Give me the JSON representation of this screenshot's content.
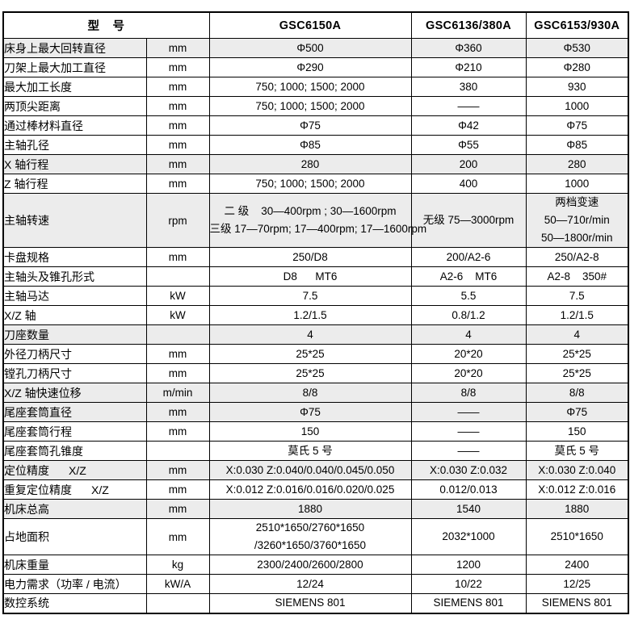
{
  "table": {
    "colors": {
      "shade": "#ececec",
      "border": "#000000",
      "text": "#000000"
    },
    "header": {
      "model_label": "型　号",
      "models": [
        "GSC6150A",
        "GSC6136/380A",
        "GSC6153/930A"
      ]
    },
    "rows": [
      {
        "label": "床身上最大回转直径",
        "unit": "mm",
        "values": [
          "Φ500",
          "Φ360",
          "Φ530"
        ],
        "shaded": true
      },
      {
        "label": "刀架上最大加工直径",
        "unit": "mm",
        "values": [
          "Φ290",
          "Φ210",
          "Φ280"
        ],
        "shaded": false
      },
      {
        "label": "最大加工长度",
        "unit": "mm",
        "values": [
          "750; 1000; 1500; 2000",
          "380",
          "930"
        ],
        "shaded": false
      },
      {
        "label": "两顶尖距离",
        "unit": "mm",
        "values": [
          "750; 1000; 1500; 2000",
          "——",
          "1000"
        ],
        "shaded": false
      },
      {
        "label": "通过棒材料直径",
        "unit": "mm",
        "values": [
          "Φ75",
          "Φ42",
          "Φ75"
        ],
        "shaded": false
      },
      {
        "label": "主轴孔径",
        "unit": "mm",
        "values": [
          "Φ85",
          "Φ55",
          "Φ85"
        ],
        "shaded": false
      },
      {
        "label": "X 轴行程",
        "unit": "mm",
        "values": [
          "280",
          "200",
          "280"
        ],
        "shaded": true
      },
      {
        "label": "Z 轴行程",
        "unit": "mm",
        "values": [
          "750; 1000; 1500; 2000",
          "400",
          "1000"
        ],
        "shaded": false
      },
      {
        "label": "主轴转速",
        "unit": "rpm",
        "values": [
          [
            "二 级    30—400rpm ; 30—1600rpm",
            "三级 17—70rpm; 17—400rpm; 17—1600rpm"
          ],
          "无级 75—3000rpm",
          [
            "两档变速",
            "50—710r/min",
            "50—1800r/min"
          ]
        ],
        "shaded": true
      },
      {
        "label": "卡盘规格",
        "unit": "mm",
        "values": [
          "250/D8",
          "200/A2-6",
          "250/A2-8"
        ],
        "shaded": false
      },
      {
        "label": "主轴头及锥孔形式",
        "unit": "",
        "values": [
          "D8      MT6",
          "A2-6    MT6",
          "A2-8    350#"
        ],
        "shaded": false
      },
      {
        "label": "主轴马达",
        "unit": "kW",
        "values": [
          "7.5",
          "5.5",
          "7.5"
        ],
        "shaded": false
      },
      {
        "label": "X/Z 轴",
        "unit": "kW",
        "values": [
          "1.2/1.5",
          "0.8/1.2",
          "1.2/1.5"
        ],
        "shaded": false
      },
      {
        "label": "刀座数量",
        "unit": "",
        "values": [
          "4",
          "4",
          "4"
        ],
        "shaded": true
      },
      {
        "label": "外径刀柄尺寸",
        "unit": "mm",
        "values": [
          "25*25",
          "20*20",
          "25*25"
        ],
        "shaded": false
      },
      {
        "label": "镗孔刀柄尺寸",
        "unit": "mm",
        "values": [
          "25*25",
          "20*20",
          "25*25"
        ],
        "shaded": false
      },
      {
        "label": "X/Z 轴快速位移",
        "unit": "m/min",
        "values": [
          "8/8",
          "8/8",
          "8/8"
        ],
        "shaded": true
      },
      {
        "label": "尾座套筒直径",
        "unit": "mm",
        "values": [
          "Φ75",
          "——",
          "Φ75"
        ],
        "shaded": true
      },
      {
        "label": "尾座套筒行程",
        "unit": "mm",
        "values": [
          "150",
          "——",
          "150"
        ],
        "shaded": false
      },
      {
        "label": "尾座套筒孔锥度",
        "unit": "",
        "values": [
          "莫氏 5 号",
          "——",
          "莫氏 5 号"
        ],
        "shaded": false
      },
      {
        "label": "定位精度",
        "label2": "X/Z",
        "unit": "mm",
        "values": [
          "X:0.030 Z:0.040/0.040/0.045/0.050",
          "X:0.030 Z:0.032",
          "X:0.030 Z:0.040"
        ],
        "shaded": true
      },
      {
        "label": "重复定位精度",
        "label2": "X/Z",
        "unit": "mm",
        "values": [
          "X:0.012 Z:0.016/0.016/0.020/0.025",
          "0.012/0.013",
          "X:0.012 Z:0.016"
        ],
        "shaded": false
      },
      {
        "label": "机床总高",
        "unit": "mm",
        "values": [
          "1880",
          "1540",
          "1880"
        ],
        "shaded": true
      },
      {
        "label": "占地面积",
        "unit": "mm",
        "values": [
          [
            "2510*1650/2760*1650",
            "/3260*1650/3760*1650"
          ],
          "2032*1000",
          "2510*1650"
        ],
        "shaded": false
      },
      {
        "label": "机床重量",
        "unit": "kg",
        "values": [
          "2300/2400/2600/2800",
          "1200",
          "2400"
        ],
        "shaded": false
      },
      {
        "label": "电力需求（功率 / 电流）",
        "unit": "kW/A",
        "values": [
          "12/24",
          "10/22",
          "12/25"
        ],
        "shaded": false
      },
      {
        "label": "数控系统",
        "unit": "",
        "values": [
          "SIEMENS 801",
          "SIEMENS 801",
          "SIEMENS 801"
        ],
        "shaded": false
      }
    ]
  }
}
